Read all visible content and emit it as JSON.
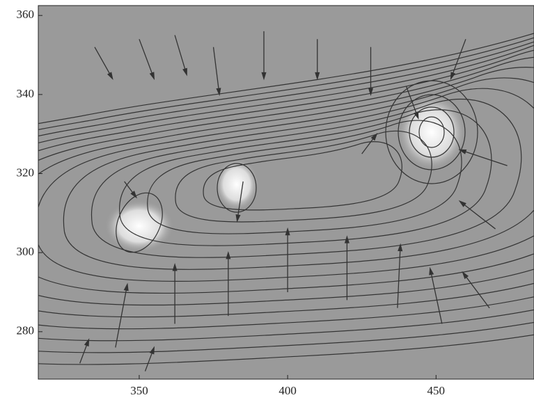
{
  "chart_data": {
    "type": "quiver",
    "xlim": [
      316,
      483
    ],
    "ylim": [
      268,
      362.5
    ],
    "xticks": [
      350,
      400,
      450
    ],
    "yticks": [
      280,
      300,
      320,
      340,
      360
    ],
    "color": "#333333",
    "vectors": {
      "x": [
        330,
        342,
        352,
        362,
        380,
        400,
        420,
        437,
        452,
        468,
        470,
        474,
        335,
        350,
        362,
        375,
        392,
        410,
        428,
        440,
        460,
        385,
        345,
        425
      ],
      "y": [
        272,
        276,
        270,
        282,
        284,
        290,
        288,
        286,
        282,
        286,
        306,
        322,
        352,
        354,
        355,
        352,
        356,
        354,
        352,
        342,
        354,
        318,
        318,
        325
      ],
      "u": [
        3,
        4,
        3,
        0,
        0,
        0,
        0,
        1,
        -4,
        -9,
        -12,
        -16,
        6,
        5,
        4,
        2,
        0,
        0,
        0,
        4,
        -5,
        -2,
        4,
        5
      ],
      "v": [
        6,
        16,
        6,
        15,
        16,
        16,
        16,
        16,
        14,
        9,
        7,
        4,
        -8,
        -10,
        -10,
        -12,
        -12,
        -10,
        -12,
        -8,
        -10,
        -10,
        -4,
        5
      ]
    }
  }
}
